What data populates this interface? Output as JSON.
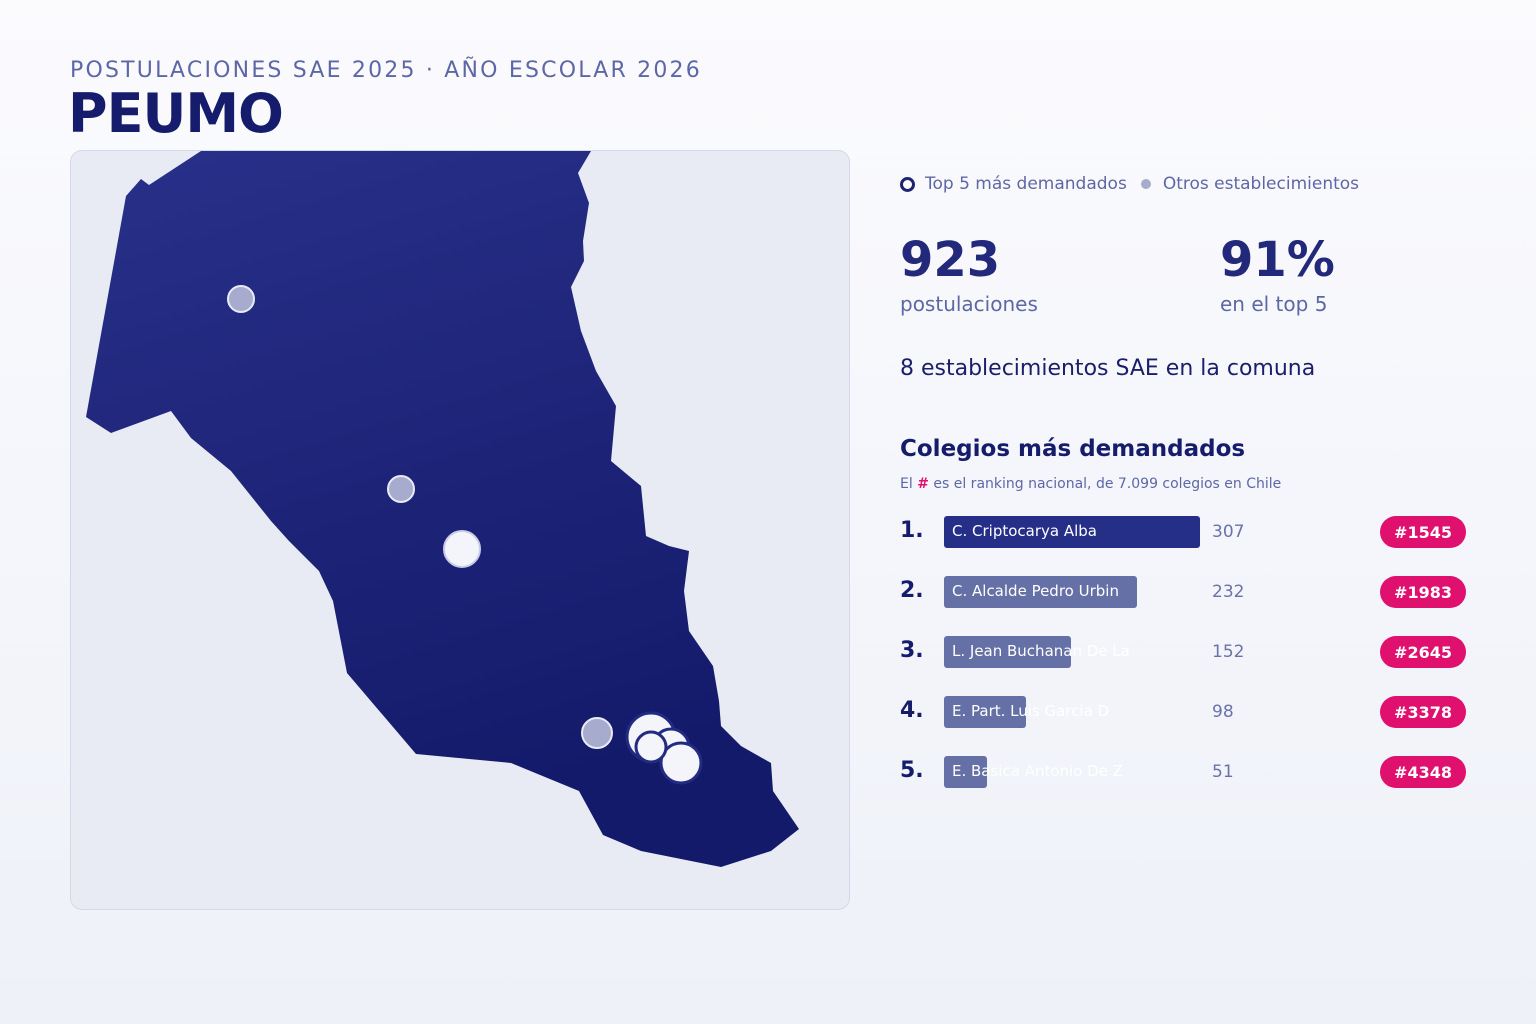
{
  "header": {
    "subtitle": "POSTULACIONES SAE 2025 · AÑO ESCOLAR 2026",
    "title": "PEUMO"
  },
  "legend": {
    "top5_label": "Top 5 más demandados",
    "others_label": "Otros establecimientos"
  },
  "stats": {
    "applications_value": "923",
    "applications_label": "postulaciones",
    "top5_share_value": "91%",
    "top5_share_label": "en el top 5",
    "schools_line": "8 establecimientos SAE en la comuna"
  },
  "ranking": {
    "title": "Colegios más demandados",
    "note_prefix": "El ",
    "note_hash": "#",
    "note_suffix": " es el ranking nacional, de 7.099 colegios en Chile",
    "max_value": 307,
    "schools": [
      {
        "position": "1.",
        "name": "C. Criptocarya Alba",
        "value": 307,
        "national_rank": "#1545"
      },
      {
        "position": "2.",
        "name": "C. Alcalde Pedro Urbin",
        "value": 232,
        "national_rank": "#1983"
      },
      {
        "position": "3.",
        "name": "L. Jean Buchanan De La",
        "value": 152,
        "national_rank": "#2645"
      },
      {
        "position": "4.",
        "name": "E. Part. Luis Garcia D",
        "value": 98,
        "national_rank": "#3378"
      },
      {
        "position": "5.",
        "name": "E. Basica Antonio De Z",
        "value": 51,
        "national_rank": "#4348"
      }
    ]
  },
  "map": {
    "commune_fill": "#1b2275",
    "top5_marker_color": "#f4f5fb",
    "other_marker_color": "#a7abce",
    "accent_color": "#e0106e"
  }
}
